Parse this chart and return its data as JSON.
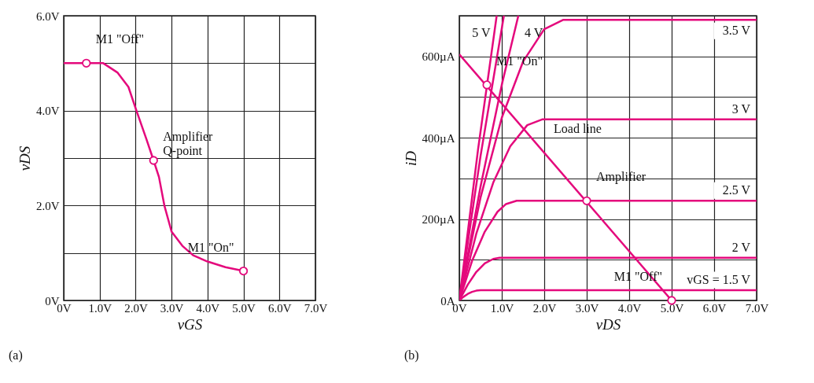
{
  "chart_data": [
    {
      "type": "line",
      "xlabel": "vGS",
      "ylabel": "vDS",
      "xlim": [
        0,
        7
      ],
      "ylim": [
        0,
        6
      ],
      "grid": true,
      "xticks": [
        {
          "value": 0,
          "label": "0V"
        },
        {
          "value": 1,
          "label": "1.0V"
        },
        {
          "value": 2,
          "label": "2.0V"
        },
        {
          "value": 3,
          "label": "3.0V"
        },
        {
          "value": 4,
          "label": "4.0V"
        },
        {
          "value": 5,
          "label": "5.0V"
        },
        {
          "value": 6,
          "label": "6.0V"
        },
        {
          "value": 7,
          "label": "7.0V"
        }
      ],
      "yticks": [
        {
          "value": 0,
          "label": "0V"
        },
        {
          "value": 1,
          "label": null
        },
        {
          "value": 2,
          "label": "2.0V"
        },
        {
          "value": 3,
          "label": null
        },
        {
          "value": 4,
          "label": "4.0V"
        },
        {
          "value": 5,
          "label": null
        },
        {
          "value": 6,
          "label": "6.0V"
        }
      ],
      "series": [
        {
          "color": "#e4097c",
          "x": [
            0,
            1.1,
            1.5,
            1.8,
            2.0,
            2.3,
            2.5,
            2.65,
            2.8,
            3.0,
            3.3,
            3.6,
            4.0,
            4.5,
            5.0
          ],
          "values": [
            5,
            5,
            4.8,
            4.5,
            4.05,
            3.4,
            2.95,
            2.6,
            2.0,
            1.45,
            1.15,
            0.95,
            0.82,
            0.7,
            0.62
          ]
        },
        {
          "type": "scatter",
          "marker": "circle",
          "color": "#e4097c",
          "x": [
            0.63,
            2.5,
            5.0
          ],
          "values": [
            5,
            2.95,
            0.62
          ]
        }
      ],
      "annotations": [
        {
          "text": "M1 \"Off\"",
          "x": 0.63,
          "y": 5
        },
        {
          "text": "Amplifier\nQ-point",
          "x": 2.5,
          "y": 2.95
        },
        {
          "text": "M1 \"On\"",
          "x": 5.0,
          "y": 0.62
        },
        "(a)"
      ]
    },
    {
      "type": "line",
      "xlabel": "vDS",
      "ylabel": "iD",
      "xlim": [
        0,
        7
      ],
      "ylim": [
        0,
        700
      ],
      "grid": true,
      "xticks": [
        {
          "value": 0,
          "label": "0V"
        },
        {
          "value": 1,
          "label": "1.0V"
        },
        {
          "value": 2,
          "label": "2.0V"
        },
        {
          "value": 3,
          "label": "3.0V"
        },
        {
          "value": 4,
          "label": "4.0V"
        },
        {
          "value": 5,
          "label": "5.0V"
        },
        {
          "value": 6,
          "label": "6.0V"
        },
        {
          "value": 7,
          "label": "7.0V"
        }
      ],
      "yticks": [
        {
          "value": 0,
          "label": "0A"
        },
        {
          "value": 100,
          "label": null
        },
        {
          "value": 200,
          "label": "200µA"
        },
        {
          "value": 300,
          "label": null
        },
        {
          "value": 400,
          "label": "400µA"
        },
        {
          "value": 500,
          "label": null
        },
        {
          "value": 600,
          "label": "600µA"
        },
        {
          "value": 700,
          "label": null
        }
      ],
      "series": [
        {
          "name": "5 V",
          "color": "#e4097c",
          "x": [
            0,
            0.44,
            0.88
          ],
          "values": [
            0,
            370,
            700
          ]
        },
        {
          "color": "#e4097c",
          "x": [
            0,
            0.5,
            1.05
          ],
          "values": [
            0,
            355,
            700
          ]
        },
        {
          "name": "4 V",
          "color": "#e4097c",
          "x": [
            0,
            0.5,
            1.0,
            1.39
          ],
          "values": [
            0,
            280,
            530,
            700
          ]
        },
        {
          "name": "3.5 V",
          "color": "#e4097c",
          "x": [
            0,
            0.5,
            1.0,
            1.5,
            2.0,
            2.45,
            7
          ],
          "values": [
            0,
            253,
            449,
            587,
            667,
            690,
            690
          ]
        },
        {
          "name": "3 V",
          "color": "#e4097c",
          "x": [
            0,
            0.4,
            0.8,
            1.2,
            1.6,
            1.95,
            7
          ],
          "values": [
            0,
            164,
            290,
            379,
            431,
            445,
            445
          ]
        },
        {
          "name": "2.5 V",
          "color": "#e4097c",
          "x": [
            0,
            0.3,
            0.6,
            0.9,
            1.1,
            1.35,
            7
          ],
          "values": [
            0,
            97,
            169,
            218,
            237,
            245,
            245
          ]
        },
        {
          "name": "2 V",
          "color": "#e4097c",
          "x": [
            0,
            0.2,
            0.4,
            0.6,
            0.8,
            0.95,
            7
          ],
          "values": [
            0,
            39,
            70,
            91,
            102,
            105,
            105
          ]
        },
        {
          "name": "vGS = 1.5 V",
          "color": "#e4097c",
          "x": [
            0,
            0.1,
            0.2,
            0.3,
            0.4,
            0.5,
            7
          ],
          "values": [
            0,
            9,
            16,
            21,
            24,
            25,
            25
          ]
        },
        {
          "color": "#e4097c",
          "x": [
            0,
            5.0
          ],
          "values": [
            605,
            0
          ]
        },
        {
          "type": "scatter",
          "marker": "circle",
          "color": "#e4097c",
          "x": [
            0.65,
            3.0,
            5.0
          ],
          "values": [
            530,
            245,
            0
          ]
        }
      ],
      "annotations": [
        {
          "text": "M1 \"On\"",
          "x": 0.65,
          "y": 530
        },
        {
          "text": "Load line",
          "x": 2.0,
          "y": 363
        },
        {
          "text": "Amplifier",
          "x": 3.0,
          "y": 245
        },
        {
          "text": "M1 \"Off\"",
          "x": 5.0,
          "y": 0
        },
        "(b)"
      ]
    }
  ]
}
